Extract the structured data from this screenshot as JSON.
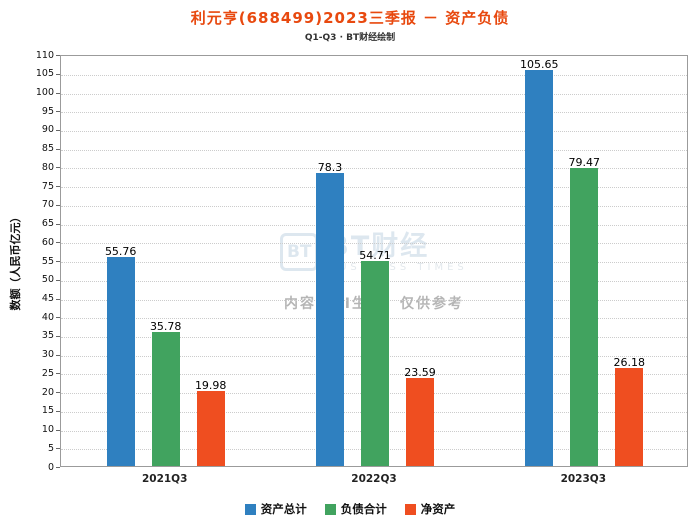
{
  "chart_data": {
    "type": "bar",
    "title": "利元亨(688499)2023三季报 － 资产负债",
    "title_color": "#e8490f",
    "subtitle": "Q1-Q3 · BT财经绘制",
    "xlabel": "",
    "ylabel": "数额（人民币亿元）",
    "categories": [
      "2021Q3",
      "2022Q3",
      "2023Q3"
    ],
    "series": [
      {
        "name": "资产总计",
        "color": "#2f80c0",
        "values": [
          55.76,
          78.3,
          105.65
        ]
      },
      {
        "name": "负债合计",
        "color": "#41a35f",
        "values": [
          35.78,
          54.71,
          79.47
        ]
      },
      {
        "name": "净资产",
        "color": "#ef4e20",
        "values": [
          19.98,
          23.59,
          26.18
        ]
      }
    ],
    "ylim": [
      0,
      110
    ],
    "ytick_step": 5,
    "grid": true,
    "legend_position": "bottom"
  },
  "watermark": {
    "logo_icon_text": "BT",
    "logo_text": "BT财经",
    "logo_subtext": "BUSINESS TIMES",
    "disclaimer": "内容由AI生成，仅供参考"
  }
}
